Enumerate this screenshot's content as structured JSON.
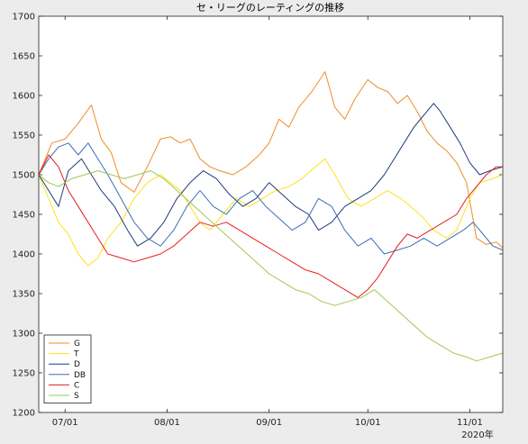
{
  "chart_data": {
    "type": "line",
    "title": "セ・リーグのレーティングの推移",
    "xlabel": "",
    "ylabel": "",
    "ylim": [
      1200,
      1700
    ],
    "yticks": [
      1200,
      1250,
      1300,
      1350,
      1400,
      1450,
      1500,
      1550,
      1600,
      1650,
      1700
    ],
    "x_axis": {
      "type": "date",
      "start": "2020-06-23",
      "end": "2020-11-11",
      "ticks": [
        {
          "date": "2020-07-01",
          "label": "07/01"
        },
        {
          "date": "2020-08-01",
          "label": "08/01"
        },
        {
          "date": "2020-09-01",
          "label": "09/01"
        },
        {
          "date": "2020-10-01",
          "label": "10/01"
        },
        {
          "date": "2020-11-01",
          "label": "11/01"
        }
      ],
      "corner_label": "2020年"
    },
    "grid": false,
    "legend": "bottom-left",
    "series": [
      {
        "name": "G",
        "color": "#f08c28",
        "points": [
          [
            "2020-06-23",
            1500
          ],
          [
            "2020-06-27",
            1540
          ],
          [
            "2020-07-01",
            1545
          ],
          [
            "2020-07-05",
            1565
          ],
          [
            "2020-07-09",
            1588
          ],
          [
            "2020-07-12",
            1545
          ],
          [
            "2020-07-15",
            1528
          ],
          [
            "2020-07-18",
            1490
          ],
          [
            "2020-07-22",
            1478
          ],
          [
            "2020-07-26",
            1510
          ],
          [
            "2020-07-30",
            1545
          ],
          [
            "2020-08-02",
            1548
          ],
          [
            "2020-08-05",
            1540
          ],
          [
            "2020-08-08",
            1545
          ],
          [
            "2020-08-11",
            1520
          ],
          [
            "2020-08-14",
            1510
          ],
          [
            "2020-08-17",
            1505
          ],
          [
            "2020-08-21",
            1500
          ],
          [
            "2020-08-25",
            1510
          ],
          [
            "2020-08-29",
            1525
          ],
          [
            "2020-09-01",
            1540
          ],
          [
            "2020-09-04",
            1570
          ],
          [
            "2020-09-07",
            1560
          ],
          [
            "2020-09-10",
            1585
          ],
          [
            "2020-09-14",
            1605
          ],
          [
            "2020-09-18",
            1630
          ],
          [
            "2020-09-21",
            1585
          ],
          [
            "2020-09-24",
            1570
          ],
          [
            "2020-09-27",
            1595
          ],
          [
            "2020-10-01",
            1620
          ],
          [
            "2020-10-04",
            1610
          ],
          [
            "2020-10-07",
            1605
          ],
          [
            "2020-10-10",
            1590
          ],
          [
            "2020-10-13",
            1600
          ],
          [
            "2020-10-16",
            1580
          ],
          [
            "2020-10-19",
            1555
          ],
          [
            "2020-10-22",
            1540
          ],
          [
            "2020-10-25",
            1530
          ],
          [
            "2020-10-28",
            1515
          ],
          [
            "2020-10-31",
            1490
          ],
          [
            "2020-11-03",
            1420
          ],
          [
            "2020-11-06",
            1412
          ],
          [
            "2020-11-09",
            1415
          ],
          [
            "2020-11-11",
            1408
          ]
        ]
      },
      {
        "name": "T",
        "color": "#ffe11e",
        "points": [
          [
            "2020-06-23",
            1500
          ],
          [
            "2020-06-26",
            1470
          ],
          [
            "2020-06-29",
            1440
          ],
          [
            "2020-07-02",
            1425
          ],
          [
            "2020-07-05",
            1400
          ],
          [
            "2020-07-08",
            1385
          ],
          [
            "2020-07-11",
            1395
          ],
          [
            "2020-07-14",
            1420
          ],
          [
            "2020-07-18",
            1440
          ],
          [
            "2020-07-22",
            1470
          ],
          [
            "2020-07-26",
            1490
          ],
          [
            "2020-07-30",
            1500
          ],
          [
            "2020-08-02",
            1490
          ],
          [
            "2020-08-05",
            1480
          ],
          [
            "2020-08-08",
            1460
          ],
          [
            "2020-08-11",
            1440
          ],
          [
            "2020-08-14",
            1430
          ],
          [
            "2020-08-18",
            1450
          ],
          [
            "2020-08-22",
            1470
          ],
          [
            "2020-08-26",
            1460
          ],
          [
            "2020-08-30",
            1470
          ],
          [
            "2020-09-03",
            1480
          ],
          [
            "2020-09-07",
            1485
          ],
          [
            "2020-09-11",
            1495
          ],
          [
            "2020-09-15",
            1510
          ],
          [
            "2020-09-18",
            1520
          ],
          [
            "2020-09-21",
            1500
          ],
          [
            "2020-09-25",
            1470
          ],
          [
            "2020-09-29",
            1460
          ],
          [
            "2020-10-03",
            1470
          ],
          [
            "2020-10-07",
            1480
          ],
          [
            "2020-10-11",
            1470
          ],
          [
            "2020-10-14",
            1460
          ],
          [
            "2020-10-18",
            1445
          ],
          [
            "2020-10-21",
            1430
          ],
          [
            "2020-10-25",
            1420
          ],
          [
            "2020-10-28",
            1430
          ],
          [
            "2020-11-01",
            1470
          ],
          [
            "2020-11-04",
            1490
          ],
          [
            "2020-11-08",
            1495
          ],
          [
            "2020-11-11",
            1500
          ]
        ]
      },
      {
        "name": "D",
        "color": "#1e3c78",
        "points": [
          [
            "2020-06-23",
            1500
          ],
          [
            "2020-06-26",
            1480
          ],
          [
            "2020-06-29",
            1460
          ],
          [
            "2020-07-02",
            1505
          ],
          [
            "2020-07-06",
            1520
          ],
          [
            "2020-07-09",
            1500
          ],
          [
            "2020-07-12",
            1480
          ],
          [
            "2020-07-16",
            1460
          ],
          [
            "2020-07-20",
            1430
          ],
          [
            "2020-07-23",
            1410
          ],
          [
            "2020-07-27",
            1420
          ],
          [
            "2020-07-31",
            1440
          ],
          [
            "2020-08-04",
            1470
          ],
          [
            "2020-08-08",
            1490
          ],
          [
            "2020-08-12",
            1505
          ],
          [
            "2020-08-16",
            1495
          ],
          [
            "2020-08-20",
            1475
          ],
          [
            "2020-08-24",
            1460
          ],
          [
            "2020-08-28",
            1470
          ],
          [
            "2020-09-01",
            1490
          ],
          [
            "2020-09-05",
            1475
          ],
          [
            "2020-09-09",
            1460
          ],
          [
            "2020-09-13",
            1450
          ],
          [
            "2020-09-16",
            1430
          ],
          [
            "2020-09-20",
            1440
          ],
          [
            "2020-09-24",
            1460
          ],
          [
            "2020-09-28",
            1470
          ],
          [
            "2020-10-02",
            1480
          ],
          [
            "2020-10-06",
            1500
          ],
          [
            "2020-10-09",
            1520
          ],
          [
            "2020-10-12",
            1540
          ],
          [
            "2020-10-15",
            1560
          ],
          [
            "2020-10-18",
            1575
          ],
          [
            "2020-10-21",
            1590
          ],
          [
            "2020-10-23",
            1580
          ],
          [
            "2020-10-26",
            1560
          ],
          [
            "2020-10-29",
            1540
          ],
          [
            "2020-11-01",
            1515
          ],
          [
            "2020-11-04",
            1500
          ],
          [
            "2020-11-07",
            1505
          ],
          [
            "2020-11-11",
            1510
          ]
        ]
      },
      {
        "name": "DB",
        "color": "#3c6eb4",
        "points": [
          [
            "2020-06-23",
            1500
          ],
          [
            "2020-06-26",
            1520
          ],
          [
            "2020-06-29",
            1535
          ],
          [
            "2020-07-02",
            1540
          ],
          [
            "2020-07-05",
            1525
          ],
          [
            "2020-07-08",
            1540
          ],
          [
            "2020-07-11",
            1520
          ],
          [
            "2020-07-14",
            1500
          ],
          [
            "2020-07-18",
            1470
          ],
          [
            "2020-07-22",
            1440
          ],
          [
            "2020-07-26",
            1420
          ],
          [
            "2020-07-30",
            1410
          ],
          [
            "2020-08-03",
            1430
          ],
          [
            "2020-08-07",
            1460
          ],
          [
            "2020-08-11",
            1480
          ],
          [
            "2020-08-15",
            1460
          ],
          [
            "2020-08-19",
            1450
          ],
          [
            "2020-08-23",
            1470
          ],
          [
            "2020-08-27",
            1480
          ],
          [
            "2020-08-31",
            1460
          ],
          [
            "2020-09-04",
            1445
          ],
          [
            "2020-09-08",
            1430
          ],
          [
            "2020-09-12",
            1440
          ],
          [
            "2020-09-16",
            1470
          ],
          [
            "2020-09-20",
            1460
          ],
          [
            "2020-09-24",
            1430
          ],
          [
            "2020-09-28",
            1410
          ],
          [
            "2020-10-02",
            1420
          ],
          [
            "2020-10-06",
            1400
          ],
          [
            "2020-10-10",
            1405
          ],
          [
            "2020-10-14",
            1410
          ],
          [
            "2020-10-18",
            1420
          ],
          [
            "2020-10-22",
            1410
          ],
          [
            "2020-10-26",
            1420
          ],
          [
            "2020-10-30",
            1430
          ],
          [
            "2020-11-02",
            1440
          ],
          [
            "2020-11-05",
            1425
          ],
          [
            "2020-11-08",
            1410
          ],
          [
            "2020-11-11",
            1405
          ]
        ]
      },
      {
        "name": "C",
        "color": "#e61e1e",
        "points": [
          [
            "2020-06-23",
            1500
          ],
          [
            "2020-06-26",
            1525
          ],
          [
            "2020-06-29",
            1510
          ],
          [
            "2020-07-02",
            1480
          ],
          [
            "2020-07-05",
            1460
          ],
          [
            "2020-07-08",
            1440
          ],
          [
            "2020-07-11",
            1420
          ],
          [
            "2020-07-14",
            1400
          ],
          [
            "2020-07-18",
            1395
          ],
          [
            "2020-07-22",
            1390
          ],
          [
            "2020-07-26",
            1395
          ],
          [
            "2020-07-30",
            1400
          ],
          [
            "2020-08-03",
            1410
          ],
          [
            "2020-08-07",
            1425
          ],
          [
            "2020-08-11",
            1440
          ],
          [
            "2020-08-15",
            1435
          ],
          [
            "2020-08-19",
            1440
          ],
          [
            "2020-08-23",
            1430
          ],
          [
            "2020-08-27",
            1420
          ],
          [
            "2020-08-31",
            1410
          ],
          [
            "2020-09-04",
            1400
          ],
          [
            "2020-09-08",
            1390
          ],
          [
            "2020-09-12",
            1380
          ],
          [
            "2020-09-16",
            1375
          ],
          [
            "2020-09-20",
            1365
          ],
          [
            "2020-09-24",
            1355
          ],
          [
            "2020-09-28",
            1345
          ],
          [
            "2020-10-01",
            1355
          ],
          [
            "2020-10-04",
            1370
          ],
          [
            "2020-10-07",
            1390
          ],
          [
            "2020-10-10",
            1410
          ],
          [
            "2020-10-13",
            1425
          ],
          [
            "2020-10-16",
            1420
          ],
          [
            "2020-10-20",
            1430
          ],
          [
            "2020-10-24",
            1440
          ],
          [
            "2020-10-28",
            1450
          ],
          [
            "2020-10-31",
            1470
          ],
          [
            "2020-11-03",
            1485
          ],
          [
            "2020-11-06",
            1500
          ],
          [
            "2020-11-09",
            1510
          ],
          [
            "2020-11-11",
            1510
          ]
        ]
      },
      {
        "name": "S",
        "color": "#a0c850",
        "points": [
          [
            "2020-06-23",
            1500
          ],
          [
            "2020-06-26",
            1490
          ],
          [
            "2020-06-29",
            1485
          ],
          [
            "2020-07-03",
            1495
          ],
          [
            "2020-07-07",
            1500
          ],
          [
            "2020-07-11",
            1505
          ],
          [
            "2020-07-15",
            1500
          ],
          [
            "2020-07-19",
            1495
          ],
          [
            "2020-07-23",
            1500
          ],
          [
            "2020-07-27",
            1505
          ],
          [
            "2020-07-31",
            1495
          ],
          [
            "2020-08-04",
            1480
          ],
          [
            "2020-08-08",
            1465
          ],
          [
            "2020-08-12",
            1450
          ],
          [
            "2020-08-16",
            1435
          ],
          [
            "2020-08-20",
            1420
          ],
          [
            "2020-08-24",
            1405
          ],
          [
            "2020-08-28",
            1390
          ],
          [
            "2020-09-01",
            1375
          ],
          [
            "2020-09-05",
            1365
          ],
          [
            "2020-09-09",
            1355
          ],
          [
            "2020-09-13",
            1350
          ],
          [
            "2020-09-17",
            1340
          ],
          [
            "2020-09-21",
            1335
          ],
          [
            "2020-09-25",
            1340
          ],
          [
            "2020-09-29",
            1345
          ],
          [
            "2020-10-03",
            1355
          ],
          [
            "2020-10-07",
            1340
          ],
          [
            "2020-10-11",
            1325
          ],
          [
            "2020-10-15",
            1310
          ],
          [
            "2020-10-19",
            1295
          ],
          [
            "2020-10-23",
            1285
          ],
          [
            "2020-10-27",
            1275
          ],
          [
            "2020-10-31",
            1270
          ],
          [
            "2020-11-03",
            1265
          ],
          [
            "2020-11-07",
            1270
          ],
          [
            "2020-11-11",
            1275
          ]
        ]
      }
    ]
  }
}
